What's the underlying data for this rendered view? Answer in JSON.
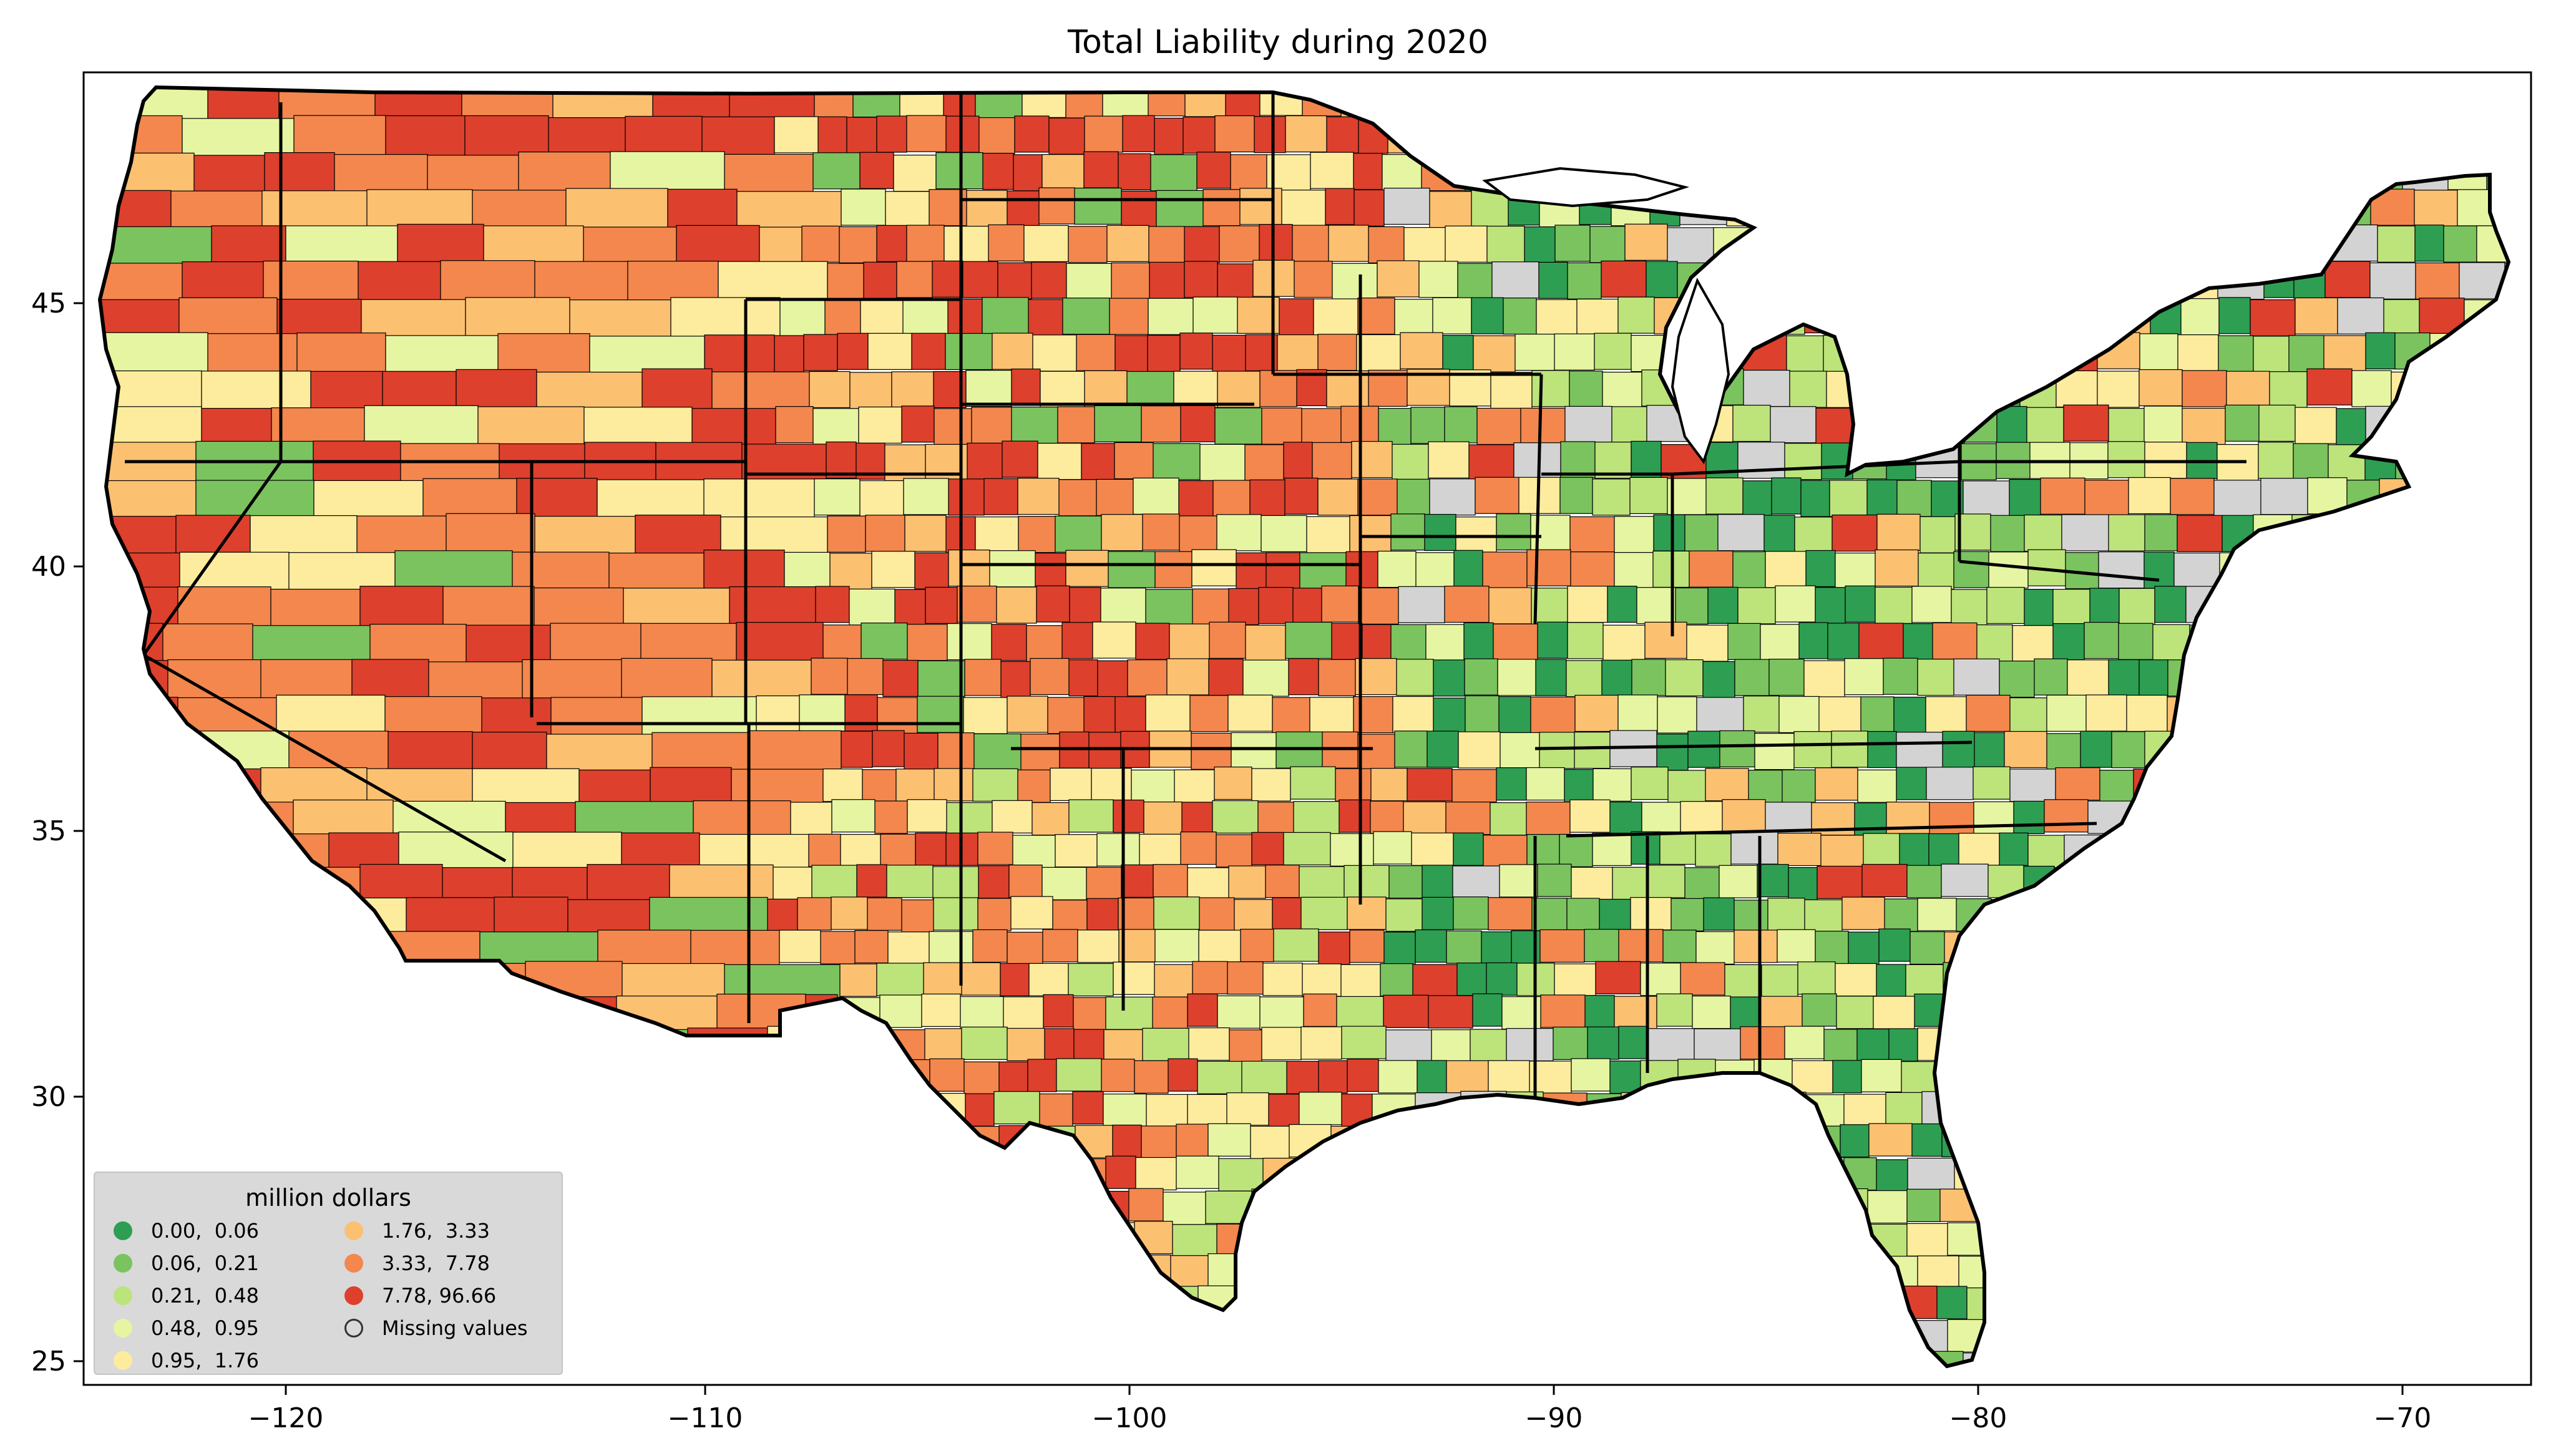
{
  "title": "Total Liability during 2020",
  "axes": {
    "x_ticks": [
      "−120",
      "−110",
      "−100",
      "−90",
      "−80",
      "−70"
    ],
    "y_ticks": [
      "45",
      "40",
      "35",
      "30",
      "25"
    ]
  },
  "legend": {
    "title": "million dollars",
    "items": [
      {
        "label": "0.00,  0.06",
        "color": "#2e9e52"
      },
      {
        "label": "0.06,  0.21",
        "color": "#7ac35f"
      },
      {
        "label": "0.21,  0.48",
        "color": "#bde37b"
      },
      {
        "label": "0.48,  0.95",
        "color": "#e6f5a1"
      },
      {
        "label": "0.95,  1.76",
        "color": "#fdec9d"
      },
      {
        "label": "1.76,  3.33",
        "color": "#fcc071"
      },
      {
        "label": "3.33,  7.78",
        "color": "#f3874d"
      },
      {
        "label": "7.78, 96.66",
        "color": "#dd402c"
      },
      {
        "label": "Missing values",
        "color": "#d3d3d3"
      }
    ]
  },
  "colors": {
    "missing": "#d3d3d3",
    "border": "#000000"
  }
}
